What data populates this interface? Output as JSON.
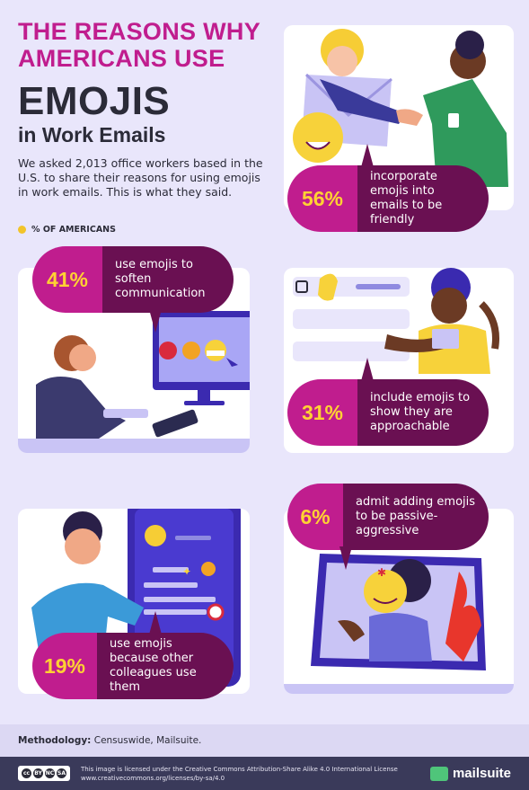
{
  "header": {
    "title_line1": "THE REASONS WHY",
    "title_line2": "AMERICANS USE",
    "title_big": "EMOJIS",
    "title_sub": "in Work Emails",
    "intro": "We asked 2,013 office workers based in the U.S. to share their reasons for using emojis in work emails. This is what they said.",
    "legend": "% OF AMERICANS"
  },
  "stats": [
    {
      "pct": "56%",
      "text": "incorporate emojis into emails to be friendly"
    },
    {
      "pct": "41%",
      "text": "use emojis to soften communication"
    },
    {
      "pct": "31%",
      "text": "include emojis to show they are approachable"
    },
    {
      "pct": "19%",
      "text": "use emojis because other colleagues use them"
    },
    {
      "pct": "6%",
      "text": "admit adding emojis to be passive-aggressive"
    }
  ],
  "methodology": {
    "label": "Methodology:",
    "value": "Censuswide, Mailsuite."
  },
  "footer": {
    "license_line1": "This image is licensed under the Creative Commons Attribution-Share Alike 4.0 International License",
    "license_line2": "www.creativecommons.org/licenses/by-sa/4.0",
    "cc_badges": [
      "cc",
      "BY",
      "NC",
      "SA"
    ],
    "brand": "mailsuite"
  },
  "colors": {
    "magenta": "#c01d8e",
    "plum": "#6a1052",
    "yellow": "#ffd233",
    "bg": "#e9e6fb"
  },
  "icons": [
    "envelope-icon",
    "handshake-icon",
    "smiley-emoji-icon",
    "waving-hand-icon",
    "monitor-icon",
    "angry-emoji-icon",
    "grimace-emoji-icon",
    "phone-icon",
    "sparkles-icon",
    "target-icon",
    "angry-symbol-icon",
    "flame-icon",
    "mailsuite-logo-icon"
  ]
}
